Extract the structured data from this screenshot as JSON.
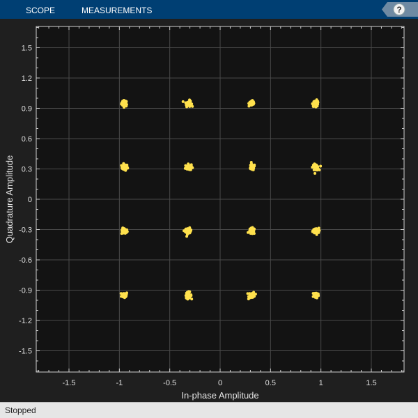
{
  "toolbar": {
    "tabs": [
      {
        "label": "SCOPE"
      },
      {
        "label": "MEASUREMENTS"
      }
    ],
    "help_icon": "question-mark-icon",
    "colors": {
      "background": "#003f73",
      "text": "#ffffff"
    }
  },
  "status": {
    "text": "Stopped"
  },
  "chart_data": {
    "type": "scatter",
    "title": "",
    "xlabel": "In-phase Amplitude",
    "ylabel": "Quadrature Amplitude",
    "xlim": [
      -1.825,
      1.825
    ],
    "ylim": [
      -1.71,
      1.71
    ],
    "xticks": [
      -1.5,
      -1,
      -0.5,
      0,
      0.5,
      1,
      1.5
    ],
    "xtick_labels": [
      "-1.5",
      "-1",
      "-0.5",
      "0",
      "0.5",
      "1",
      "1.5"
    ],
    "yticks": [
      1.5,
      1.2,
      0.9,
      0.6,
      0.3,
      0,
      -0.3,
      -0.6,
      -0.9,
      -1.2,
      -1.5
    ],
    "ytick_labels": [
      "1.5",
      "1.2",
      "0.9",
      "0.6",
      "0.3",
      "0",
      "-0.3",
      "-0.6",
      "-0.9",
      "-1.2",
      "-1.5"
    ],
    "grid": true,
    "legend": "none",
    "background": "#131313",
    "point_color": "#ffe14d",
    "constellation_i_levels": [
      -0.949,
      -0.316,
      0.316,
      0.949
    ],
    "constellation_q_levels": [
      0.949,
      0.316,
      -0.316,
      -0.949
    ],
    "spread": 0.015
  }
}
